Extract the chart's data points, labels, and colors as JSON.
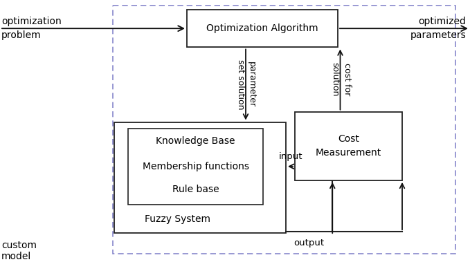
{
  "bg_color": "#ffffff",
  "dashed_color": "#8888cc",
  "opt_alg_label": "Optimization Algorithm",
  "cost_meas_label1": "Cost",
  "cost_meas_label2": "Measurement",
  "knowledge_label1": "Knowledge Base",
  "knowledge_label2": "Membership functions",
  "knowledge_label3": "Rule base",
  "fuzzy_label": "Fuzzy System",
  "left_label1": "optimization",
  "left_label2": "problem",
  "right_label1": "optimized",
  "right_label2": "parameters",
  "bottom_left1": "custom",
  "bottom_left2": "model",
  "param_label1": "parameter",
  "param_label2": "set solution",
  "cost_label1": "cost for",
  "cost_label2": "solution",
  "input_label": "input",
  "output_label": "output"
}
